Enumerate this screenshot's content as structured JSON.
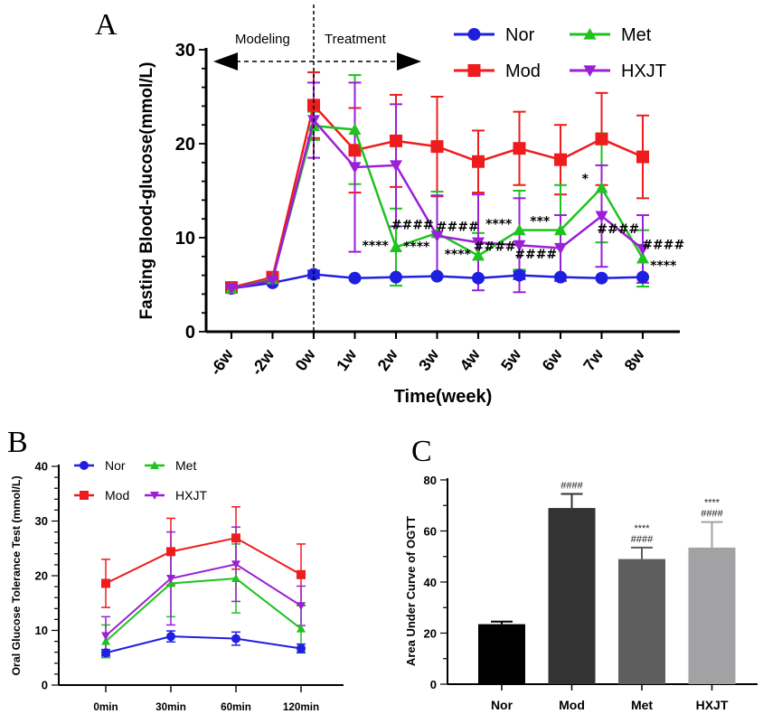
{
  "chart_data": [
    {
      "panel": "A",
      "type": "line",
      "xlabel": "Time(week)",
      "ylabel": "Fasting Blood-glucose(mmol/L)",
      "ylim": [
        0,
        30
      ],
      "yticks": [
        0,
        10,
        20,
        30
      ],
      "categories": [
        "-6w",
        "-2w",
        "0w",
        "1w",
        "2w",
        "3w",
        "4w",
        "5w",
        "6w",
        "7w",
        "8w"
      ],
      "phases": {
        "left": "Modeling",
        "right": "Treatment",
        "divider": "0w"
      },
      "series": [
        {
          "name": "Nor",
          "color": "#1f1fe0",
          "marker": "circle",
          "values": [
            4.6,
            5.2,
            6.1,
            5.7,
            5.8,
            5.9,
            5.7,
            6.0,
            5.8,
            5.7,
            5.8
          ],
          "errors": [
            0.2,
            0.3,
            0.4,
            0.3,
            0.3,
            0.3,
            0.3,
            0.4,
            0.3,
            0.3,
            0.3
          ]
        },
        {
          "name": "Mod",
          "color": "#ee1c1c",
          "marker": "square",
          "values": [
            4.7,
            5.8,
            24.1,
            19.3,
            20.3,
            19.7,
            18.1,
            19.5,
            18.3,
            20.5,
            18.6
          ],
          "errors": [
            0.2,
            0.5,
            3.5,
            4.5,
            4.9,
            5.3,
            3.3,
            3.9,
            3.7,
            4.9,
            4.4
          ]
        },
        {
          "name": "Met",
          "color": "#1ec31e",
          "marker": "triangle",
          "values": [
            4.6,
            5.6,
            21.9,
            21.5,
            9.0,
            10.5,
            8.1,
            10.8,
            10.8,
            15.3,
            7.8
          ],
          "errors": [
            0.2,
            0.3,
            1.5,
            5.8,
            4.1,
            4.4,
            2.4,
            4.2,
            4.8,
            5.8,
            3.0
          ]
        },
        {
          "name": "HXJT",
          "color": "#9b1fd6",
          "marker": "triangle-down",
          "values": [
            4.6,
            5.5,
            22.5,
            17.5,
            17.7,
            10.2,
            9.5,
            9.2,
            8.9,
            12.3,
            8.8
          ],
          "errors": [
            0.2,
            0.3,
            4.0,
            9.0,
            6.5,
            4.3,
            5.1,
            5.0,
            3.5,
            5.4,
            3.6
          ]
        }
      ],
      "annotations": [
        {
          "text": "****",
          "x": 3.5,
          "y": 8.7
        },
        {
          "text": "####",
          "x": 4.4,
          "y": 10.9
        },
        {
          "text": "****",
          "x": 4.5,
          "y": 8.6
        },
        {
          "text": "####",
          "x": 5.5,
          "y": 10.7
        },
        {
          "text": "****",
          "x": 5.5,
          "y": 7.8
        },
        {
          "text": "####",
          "x": 6.4,
          "y": 8.6
        },
        {
          "text": "****",
          "x": 6.5,
          "y": 11.0
        },
        {
          "text": "####",
          "x": 7.4,
          "y": 7.8
        },
        {
          "text": "***",
          "x": 7.5,
          "y": 11.3
        },
        {
          "text": "*",
          "x": 8.6,
          "y": 15.8
        },
        {
          "text": "####",
          "x": 9.4,
          "y": 10.5
        },
        {
          "text": "####",
          "x": 10.5,
          "y": 8.8
        },
        {
          "text": "****",
          "x": 10.5,
          "y": 6.6
        }
      ]
    },
    {
      "panel": "B",
      "type": "line",
      "ylabel": "Oral Glucose Tolerance Test (mmol/L)",
      "ylim": [
        0,
        40
      ],
      "yticks": [
        0,
        10,
        20,
        30,
        40
      ],
      "categories": [
        "0min",
        "30min",
        "60min",
        "120min"
      ],
      "series": [
        {
          "name": "Nor",
          "color": "#1f1fe0",
          "marker": "circle",
          "values": [
            5.9,
            8.9,
            8.5,
            6.7
          ],
          "errors": [
            0.6,
            1.0,
            1.2,
            0.8
          ]
        },
        {
          "name": "Mod",
          "color": "#ee1c1c",
          "marker": "square",
          "values": [
            18.6,
            24.4,
            26.9,
            20.2
          ],
          "errors": [
            4.4,
            6.1,
            5.7,
            5.6
          ]
        },
        {
          "name": "Met",
          "color": "#1ec31e",
          "marker": "triangle",
          "values": [
            8.0,
            18.6,
            19.5,
            10.3
          ],
          "errors": [
            3.0,
            6.1,
            6.3,
            4.2
          ]
        },
        {
          "name": "HXJT",
          "color": "#9b1fd6",
          "marker": "triangle-down",
          "values": [
            9.0,
            19.5,
            22.1,
            14.5
          ],
          "errors": [
            3.5,
            8.5,
            6.8,
            3.6
          ]
        }
      ]
    },
    {
      "panel": "C",
      "type": "bar",
      "ylabel": "Area Under Curve of OGTT",
      "ylim": [
        0,
        80
      ],
      "yticks": [
        0,
        20,
        40,
        60,
        80
      ],
      "categories": [
        "Nor",
        "Mod",
        "Met",
        "HXJT"
      ],
      "values": [
        23.5,
        69.0,
        49.0,
        53.5
      ],
      "errors": [
        1.0,
        5.5,
        4.5,
        10.0
      ],
      "colors": [
        "#000000",
        "#333333",
        "#5e5e5e",
        "#a2a2a4"
      ],
      "labels": [
        [],
        [
          "####"
        ],
        [
          "****",
          "####"
        ],
        [
          "****",
          "####"
        ]
      ]
    }
  ],
  "panel_letters": [
    "A",
    "B",
    "C"
  ]
}
